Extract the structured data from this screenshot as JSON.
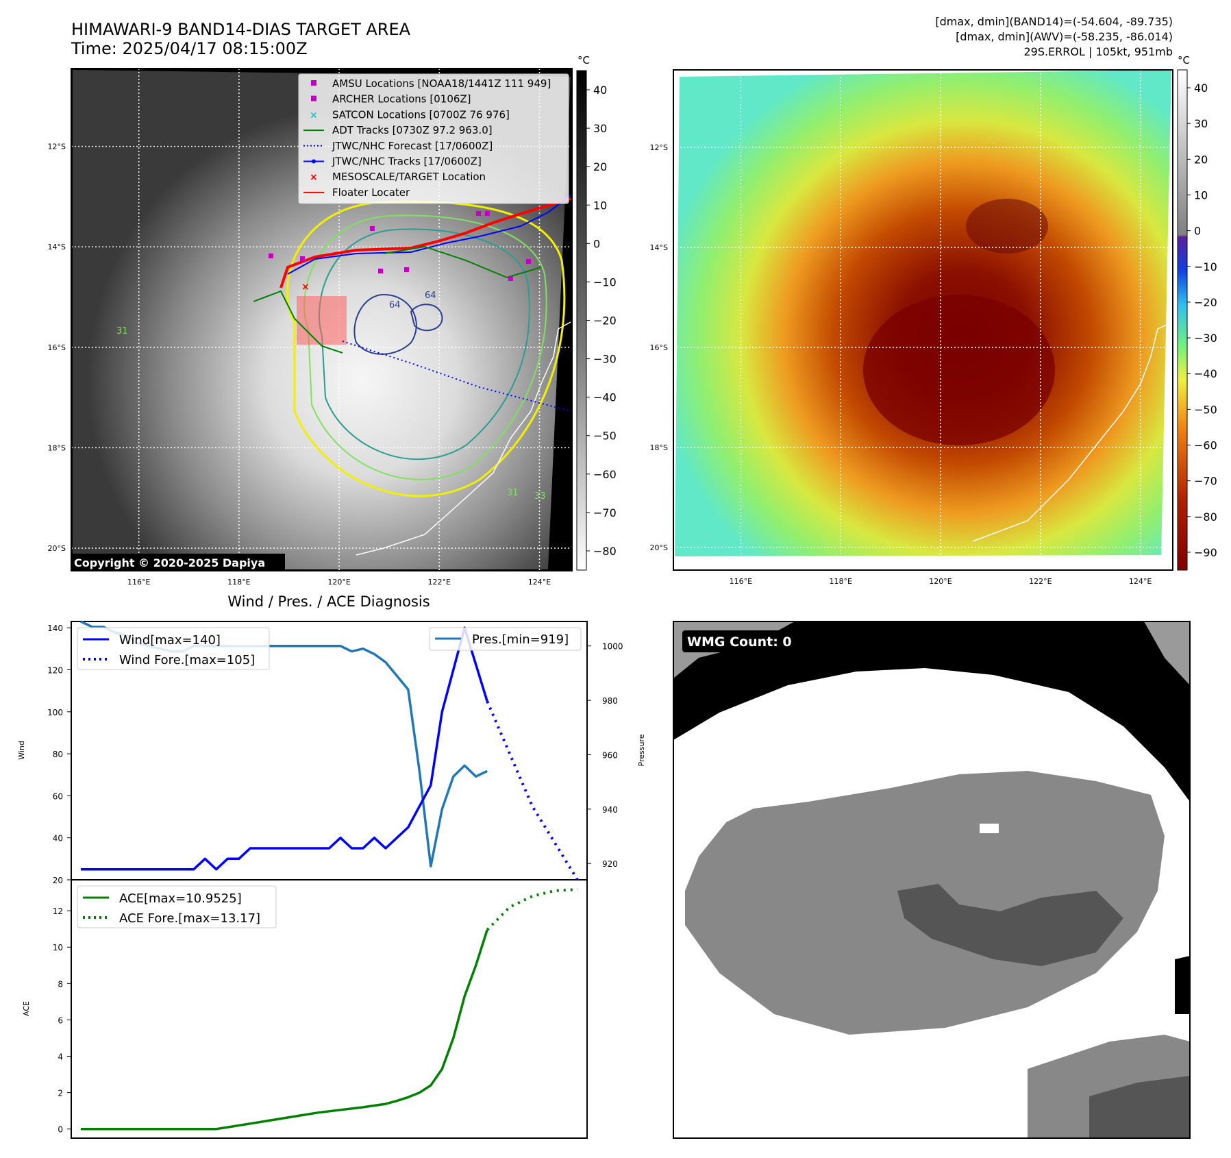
{
  "header": {
    "title_line1": "HIMAWARI-9 BAND14-DIAS TARGET AREA",
    "title_line2": "Time: 2025/04/17 08:15:00Z",
    "stats_line1": "[dmax, dmin](BAND14)=(-54.604, -89.735)",
    "stats_line2": "[dmax, dmin](AWV)=(-58.235, -86.014)",
    "stats_line3": "29S.ERROL | 105kt, 951mb"
  },
  "colors": {
    "wind": "#0000ff",
    "pressure": "#1f77b4",
    "ace": "#008000",
    "track_red": "#ff0000",
    "amsu": "#c000c0",
    "satcon": "#17becf",
    "adt": "#008000"
  },
  "map_left": {
    "copyright": "Copyright © 2020-2025 Dapiya",
    "colorbar_unit": "°C",
    "colorbar_ticks": [
      "40",
      "30",
      "20",
      "10",
      "0",
      "−10",
      "−20",
      "−30",
      "−40",
      "−50",
      "−60",
      "−70",
      "−80"
    ],
    "lat_ticks": [
      "12°S",
      "14°S",
      "16°S",
      "18°S",
      "20°S"
    ],
    "lon_ticks": [
      "116°E",
      "118°E",
      "120°E",
      "122°E",
      "124°E"
    ],
    "legend": [
      "AMSU Locations [NOAA18/1441Z 111 949]",
      "ARCHER Locations [0106Z]",
      "SATCON Locations [0700Z 76 976]",
      "ADT Tracks [0730Z 97.2 963.0]",
      "JTWC/NHC Forecast [17/0600Z]",
      "JTWC/NHC Tracks [17/0600Z]",
      "MESOSCALE/TARGET Location",
      "Floater Locater"
    ],
    "contour_labels": [
      "64",
      "64",
      "31",
      "31",
      "33"
    ]
  },
  "map_right": {
    "colorbar_unit": "°C",
    "colorbar_ticks": [
      "40",
      "30",
      "20",
      "10",
      "0",
      "−10",
      "−20",
      "−30",
      "−40",
      "−50",
      "−60",
      "−70",
      "−80",
      "−90"
    ],
    "lat_ticks": [
      "12°S",
      "14°S",
      "16°S",
      "18°S",
      "20°S"
    ],
    "lon_ticks": [
      "116°E",
      "118°E",
      "120°E",
      "122°E",
      "124°E"
    ]
  },
  "wmg": {
    "label": "WMG Count: 0"
  },
  "chart_data": [
    {
      "type": "line",
      "title": "Wind / Pres. / ACE Diagnosis",
      "ylabel": "Wind",
      "y2label": "Pressure",
      "ylim": [
        20,
        143
      ],
      "y2lim": [
        914,
        1009
      ],
      "yticks": [
        "140",
        "120",
        "100",
        "80",
        "60",
        "40",
        "20"
      ],
      "y2ticks": [
        "1000",
        "980",
        "960",
        "940",
        "920"
      ],
      "legend_left": [
        "Wind[max=140]",
        "Wind Fore.[max=105]"
      ],
      "legend_right": [
        "Pres.[min=919]"
      ],
      "series": [
        {
          "name": "Wind[max=140]",
          "axis": "left",
          "style": "solid",
          "x": [
            0,
            4,
            8,
            12,
            16,
            20,
            22,
            24,
            26,
            28,
            30,
            34,
            38,
            42,
            44,
            46,
            48,
            50,
            52,
            54,
            58,
            62,
            64,
            66,
            68,
            72
          ],
          "values": [
            25,
            25,
            25,
            25,
            25,
            25,
            30,
            25,
            30,
            30,
            35,
            35,
            35,
            35,
            35,
            40,
            35,
            35,
            40,
            35,
            45,
            65,
            100,
            120,
            140,
            105
          ]
        },
        {
          "name": "Wind Fore.[max=105]",
          "axis": "left",
          "style": "dotted",
          "x": [
            72,
            76,
            80,
            88
          ],
          "values": [
            105,
            80,
            55,
            20
          ]
        },
        {
          "name": "Pres.[min=919]",
          "axis": "right",
          "style": "solid",
          "x": [
            0,
            2,
            4,
            6,
            8,
            10,
            12,
            14,
            16,
            18,
            20,
            22,
            24,
            26,
            28,
            30,
            34,
            38,
            42,
            46,
            48,
            50,
            52,
            54,
            56,
            58,
            60,
            62,
            64,
            66,
            68,
            70,
            72
          ],
          "values": [
            1009,
            1007,
            1007,
            1005,
            1004,
            1001,
            1000,
            999,
            998,
            998,
            1000,
            1000,
            1000,
            1000,
            1000,
            1000,
            1000,
            1000,
            1000,
            1000,
            998,
            999,
            997,
            994,
            989,
            984,
            954,
            919,
            940,
            952,
            956,
            952,
            954
          ]
        }
      ]
    },
    {
      "type": "line",
      "ylabel": "ACE",
      "ylim": [
        -0.5,
        13.7
      ],
      "yticks": [
        "12",
        "10",
        "8",
        "6",
        "4",
        "2",
        "0"
      ],
      "legend": [
        "ACE[max=10.9525]",
        "ACE Fore.[max=13.17]"
      ],
      "series": [
        {
          "name": "ACE[max=10.9525]",
          "style": "solid",
          "x": [
            0,
            12,
            24,
            26,
            30,
            34,
            38,
            42,
            46,
            50,
            54,
            56,
            58,
            60,
            62,
            64,
            66,
            68,
            70,
            72
          ],
          "values": [
            0,
            0,
            0,
            0.1,
            0.3,
            0.5,
            0.7,
            0.9,
            1.05,
            1.2,
            1.38,
            1.55,
            1.75,
            2.0,
            2.4,
            3.3,
            5.0,
            7.3,
            9.0,
            10.95
          ]
        },
        {
          "name": "ACE Fore.[max=13.17]",
          "style": "dotted",
          "x": [
            72,
            76,
            80,
            84,
            88
          ],
          "values": [
            10.95,
            12.2,
            12.8,
            13.1,
            13.17
          ]
        }
      ]
    }
  ]
}
